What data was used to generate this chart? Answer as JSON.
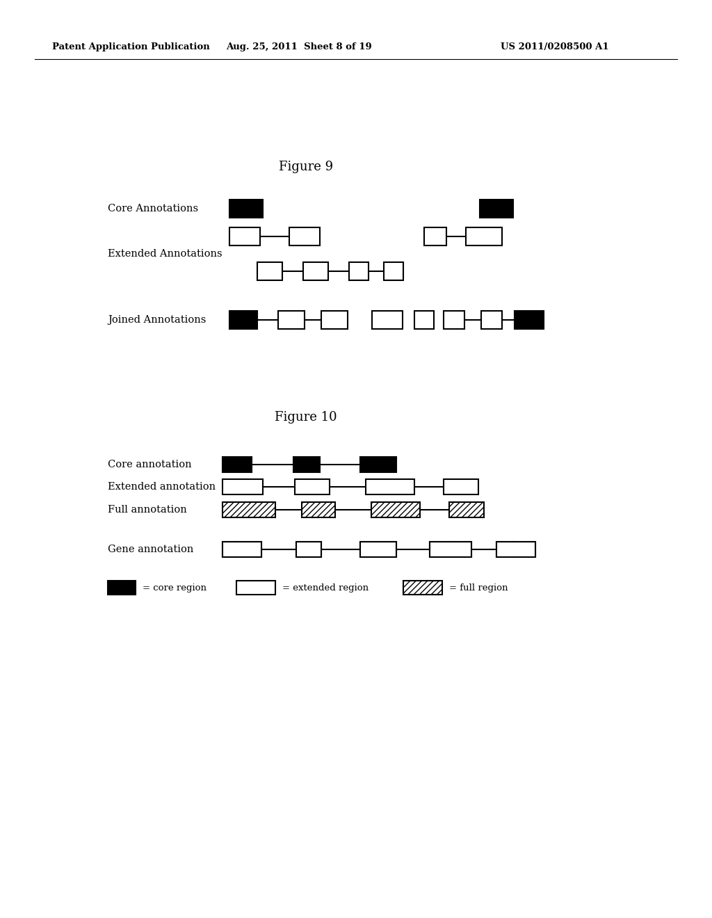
{
  "header_left": "Patent Application Publication",
  "header_mid": "Aug. 25, 2011  Sheet 8 of 19",
  "header_right": "US 2011/0208500 A1",
  "fig9_title": "Figure 9",
  "fig10_title": "Figure 10",
  "background": "#ffffff",
  "fig9": {
    "core_label": "Core Annotations",
    "extended_label": "Extended Annotations",
    "joined_label": "Joined Annotations"
  },
  "fig10": {
    "core_label": "Core annotation",
    "extended_label": "Extended annotation",
    "full_label": "Full annotation",
    "gene_label": "Gene annotation",
    "legend_core": "= core region",
    "legend_ext": "= extended region",
    "legend_full": "= full region"
  }
}
